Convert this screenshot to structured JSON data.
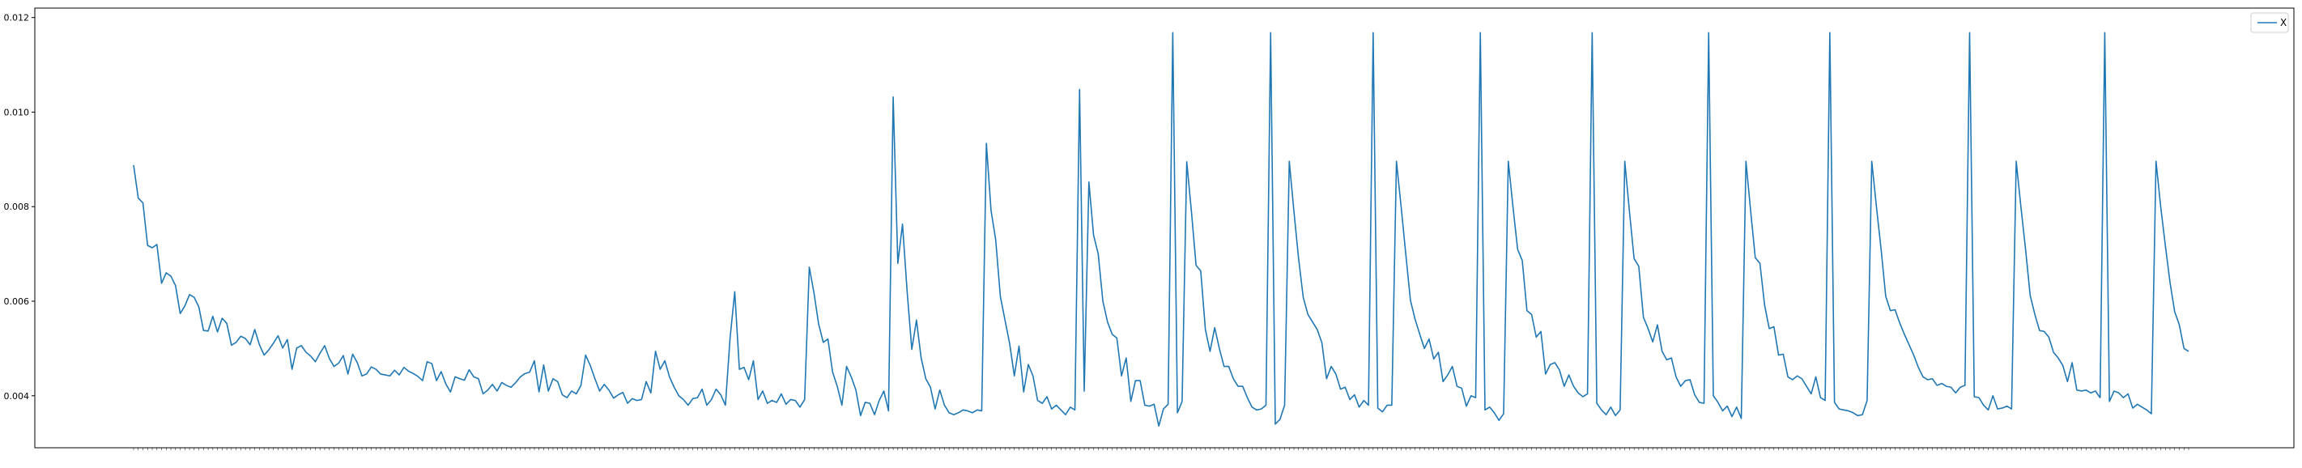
{
  "chart_data": {
    "type": "line",
    "title": "",
    "xlabel": "",
    "ylabel": "",
    "ylim": [
      0.0029,
      0.0122
    ],
    "yticks": [
      0.004,
      0.006,
      0.008,
      0.01,
      0.012
    ],
    "ytick_labels": [
      "0.004",
      "0.006",
      "0.008",
      "0.010",
      "0.012"
    ],
    "grid": false,
    "legend_position": "top-right",
    "series": [
      {
        "name": "X",
        "color": "#1f77b4",
        "values": [
          0.00888,
          0.00818,
          0.00808,
          0.00718,
          0.00713,
          0.0072,
          0.00638,
          0.0066,
          0.00653,
          0.00633,
          0.00574,
          0.0059,
          0.00614,
          0.00608,
          0.00588,
          0.00538,
          0.00537,
          0.00568,
          0.00535,
          0.00564,
          0.00553,
          0.00507,
          0.00513,
          0.00526,
          0.00521,
          0.00508,
          0.0054,
          0.00508,
          0.00486,
          0.00497,
          0.00511,
          0.00527,
          0.00501,
          0.00519,
          0.00456,
          0.00501,
          0.00506,
          0.00492,
          0.00484,
          0.00472,
          0.0049,
          0.00506,
          0.00479,
          0.00462,
          0.00469,
          0.00485,
          0.00446,
          0.00488,
          0.0047,
          0.00442,
          0.00446,
          0.00461,
          0.00456,
          0.00446,
          0.00444,
          0.00442,
          0.00454,
          0.00444,
          0.0046,
          0.00452,
          0.00447,
          0.00441,
          0.00432,
          0.00472,
          0.00468,
          0.00432,
          0.00451,
          0.00425,
          0.00408,
          0.0044,
          0.00436,
          0.00433,
          0.00455,
          0.0044,
          0.00436,
          0.00404,
          0.00412,
          0.00424,
          0.0041,
          0.00428,
          0.00422,
          0.00418,
          0.00428,
          0.0044,
          0.00447,
          0.0045,
          0.00474,
          0.00408,
          0.00465,
          0.0041,
          0.00436,
          0.0043,
          0.00402,
          0.00396,
          0.0041,
          0.00404,
          0.00422,
          0.00486,
          0.00464,
          0.00436,
          0.0041,
          0.00424,
          0.00412,
          0.00395,
          0.00402,
          0.00407,
          0.00384,
          0.00394,
          0.0039,
          0.00392,
          0.0043,
          0.00406,
          0.00494,
          0.00456,
          0.00474,
          0.0044,
          0.00418,
          0.004,
          0.00392,
          0.0038,
          0.00394,
          0.00396,
          0.00414,
          0.0038,
          0.00392,
          0.00414,
          0.00402,
          0.0038,
          0.00522,
          0.0062,
          0.00456,
          0.0046,
          0.00434,
          0.00474,
          0.00392,
          0.0041,
          0.00384,
          0.0039,
          0.00386,
          0.00404,
          0.00382,
          0.00392,
          0.0039,
          0.00376,
          0.00392,
          0.00672,
          0.00618,
          0.00552,
          0.00513,
          0.0052,
          0.0045,
          0.0042,
          0.0038,
          0.00462,
          0.0044,
          0.00412,
          0.00358,
          0.00386,
          0.00384,
          0.0036,
          0.0039,
          0.0041,
          0.00368,
          0.01032,
          0.0068,
          0.00763,
          0.0062,
          0.00498,
          0.0056,
          0.0048,
          0.00436,
          0.00418,
          0.00372,
          0.00412,
          0.0038,
          0.00364,
          0.0036,
          0.00364,
          0.0037,
          0.00368,
          0.00364,
          0.0037,
          0.00368,
          0.00934,
          0.00792,
          0.0073,
          0.0061,
          0.0056,
          0.0051,
          0.00442,
          0.00505,
          0.00408,
          0.00466,
          0.00442,
          0.0039,
          0.00384,
          0.00398,
          0.00372,
          0.0038,
          0.0037,
          0.0036,
          0.00376,
          0.0037,
          0.01048,
          0.0041,
          0.00852,
          0.0074,
          0.007,
          0.006,
          0.00556,
          0.0053,
          0.00522,
          0.00442,
          0.0048,
          0.00388,
          0.00432,
          0.00432,
          0.0038,
          0.00378,
          0.00382,
          0.00336,
          0.00372,
          0.00382,
          0.01168,
          0.00364,
          0.00388,
          0.00895,
          0.0079,
          0.00676,
          0.00664,
          0.0054,
          0.00494,
          0.00544,
          0.005,
          0.00462,
          0.00462,
          0.00436,
          0.0042,
          0.0042,
          0.00396,
          0.00376,
          0.0037,
          0.00372,
          0.0038,
          0.01168,
          0.0034,
          0.0035,
          0.0038,
          0.00896,
          0.0079,
          0.0069,
          0.00608,
          0.00572,
          0.00556,
          0.0054,
          0.00512,
          0.00436,
          0.00462,
          0.00446,
          0.00414,
          0.00418,
          0.00392,
          0.00402,
          0.00376,
          0.0039,
          0.0038,
          0.01168,
          0.00374,
          0.00366,
          0.0038,
          0.0038,
          0.00896,
          0.008,
          0.007,
          0.00602,
          0.00562,
          0.0053,
          0.005,
          0.0052,
          0.00478,
          0.00492,
          0.0043,
          0.00444,
          0.00462,
          0.0042,
          0.00416,
          0.00378,
          0.004,
          0.00396,
          0.01168,
          0.0037,
          0.00376,
          0.00364,
          0.00348,
          0.00362,
          0.00896,
          0.008,
          0.0071,
          0.00686,
          0.0058,
          0.00572,
          0.00524,
          0.00536,
          0.00446,
          0.00466,
          0.0047,
          0.00454,
          0.0042,
          0.00444,
          0.0042,
          0.00406,
          0.00398,
          0.00404,
          0.01168,
          0.00384,
          0.0037,
          0.0036,
          0.00376,
          0.00358,
          0.0037,
          0.00896,
          0.0079,
          0.0069,
          0.00674,
          0.00566,
          0.00542,
          0.00514,
          0.0055,
          0.00494,
          0.00476,
          0.0048,
          0.0044,
          0.0042,
          0.00432,
          0.00434,
          0.00402,
          0.00386,
          0.00384,
          0.01168,
          0.004,
          0.00386,
          0.00368,
          0.00378,
          0.00356,
          0.00376,
          0.00352,
          0.00896,
          0.00792,
          0.00692,
          0.0068,
          0.00592,
          0.00542,
          0.00546,
          0.00486,
          0.00488,
          0.0044,
          0.00434,
          0.00442,
          0.00436,
          0.0042,
          0.00404,
          0.0044,
          0.00396,
          0.0039,
          0.01168,
          0.00386,
          0.00372,
          0.0037,
          0.00368,
          0.00364,
          0.00358,
          0.0036,
          0.0039,
          0.00896,
          0.008,
          0.0071,
          0.0061,
          0.0058,
          0.00582,
          0.00554,
          0.0053,
          0.00508,
          0.00486,
          0.0046,
          0.0044,
          0.00434,
          0.00436,
          0.00422,
          0.00426,
          0.0042,
          0.00418,
          0.00406,
          0.00418,
          0.00422,
          0.01168,
          0.00398,
          0.00396,
          0.0038,
          0.0037,
          0.004,
          0.00372,
          0.00374,
          0.00378,
          0.00372,
          0.00896,
          0.008,
          0.0071,
          0.00612,
          0.00572,
          0.00538,
          0.00536,
          0.00524,
          0.00492,
          0.0048,
          0.00464,
          0.0043,
          0.0047,
          0.00412,
          0.0041,
          0.00412,
          0.00406,
          0.0041,
          0.00396,
          0.01168,
          0.00388,
          0.0041,
          0.00406,
          0.00396,
          0.00404,
          0.00374,
          0.00382,
          0.00376,
          0.0037,
          0.00362,
          0.00896,
          0.008,
          0.00718,
          0.0064,
          0.00578,
          0.0055,
          0.005,
          0.00494
        ]
      }
    ]
  }
}
